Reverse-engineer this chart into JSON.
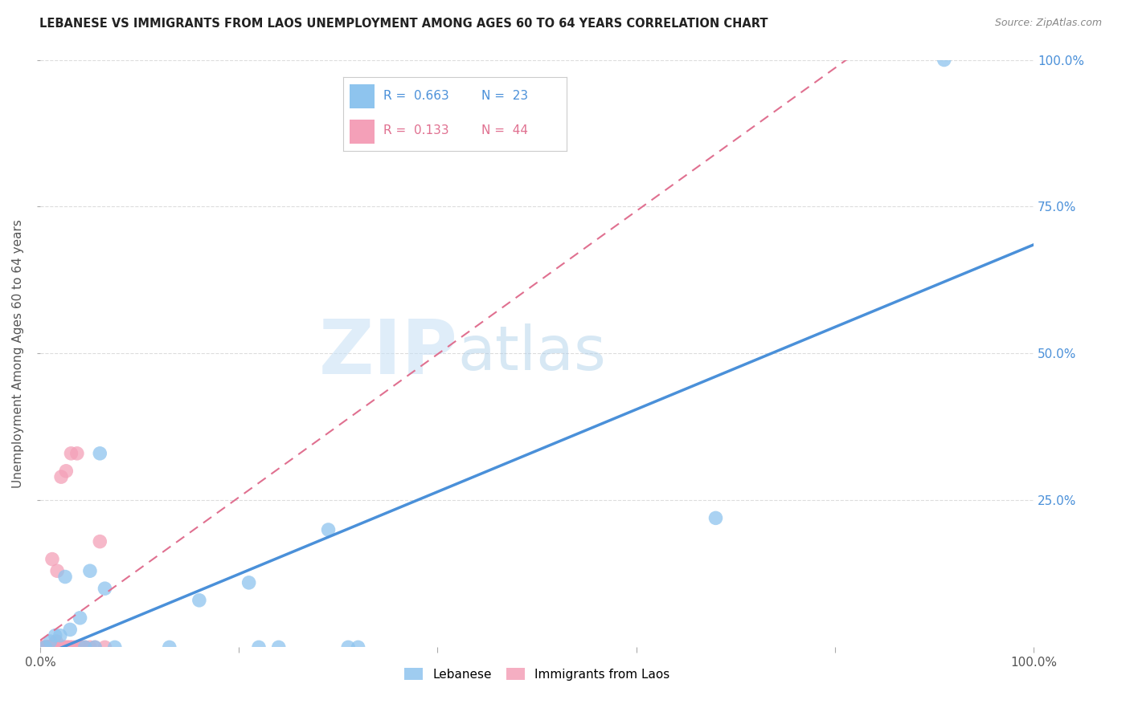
{
  "title": "LEBANESE VS IMMIGRANTS FROM LAOS UNEMPLOYMENT AMONG AGES 60 TO 64 YEARS CORRELATION CHART",
  "source": "Source: ZipAtlas.com",
  "ylabel": "Unemployment Among Ages 60 to 64 years",
  "legend_label_1": "Lebanese",
  "legend_label_2": "Immigrants from Laos",
  "R1": 0.663,
  "N1": 23,
  "R2": 0.133,
  "N2": 44,
  "color1": "#8ec4ee",
  "color2": "#f4a0b8",
  "line_color1": "#4a90d9",
  "line_color2": "#e07090",
  "background_color": "#ffffff",
  "watermark_zip": "ZIP",
  "watermark_atlas": "atlas",
  "xlim": [
    0,
    1.0
  ],
  "ylim": [
    0,
    1.0
  ],
  "ytick_values": [
    0.25,
    0.5,
    0.75,
    1.0
  ],
  "ytick_labels": [
    "25.0%",
    "50.0%",
    "75.0%",
    "100.0%"
  ],
  "lebanese_x": [
    0.005,
    0.01,
    0.015,
    0.02,
    0.025,
    0.03,
    0.04,
    0.045,
    0.05,
    0.055,
    0.06,
    0.065,
    0.075,
    0.13,
    0.16,
    0.21,
    0.22,
    0.24,
    0.29,
    0.31,
    0.32,
    0.68,
    0.91
  ],
  "lebanese_y": [
    0.0,
    0.01,
    0.02,
    0.02,
    0.12,
    0.03,
    0.05,
    0.0,
    0.13,
    0.0,
    0.33,
    0.1,
    0.0,
    0.0,
    0.08,
    0.11,
    0.0,
    0.0,
    0.2,
    0.0,
    0.0,
    0.22,
    1.0
  ],
  "laos_x": [
    0.002,
    0.003,
    0.005,
    0.006,
    0.007,
    0.007,
    0.008,
    0.008,
    0.009,
    0.009,
    0.01,
    0.01,
    0.011,
    0.012,
    0.012,
    0.013,
    0.013,
    0.014,
    0.015,
    0.016,
    0.017,
    0.018,
    0.019,
    0.02,
    0.021,
    0.022,
    0.023,
    0.024,
    0.025,
    0.026,
    0.027,
    0.028,
    0.03,
    0.031,
    0.032,
    0.035,
    0.037,
    0.04,
    0.042,
    0.045,
    0.05,
    0.055,
    0.06,
    0.065
  ],
  "laos_y": [
    0.0,
    0.0,
    0.0,
    0.0,
    0.0,
    0.0,
    0.0,
    0.0,
    0.0,
    0.0,
    0.0,
    0.0,
    0.0,
    0.0,
    0.15,
    0.0,
    0.0,
    0.0,
    0.0,
    0.01,
    0.13,
    0.0,
    0.0,
    0.0,
    0.29,
    0.0,
    0.0,
    0.0,
    0.0,
    0.3,
    0.0,
    0.0,
    0.0,
    0.33,
    0.0,
    0.0,
    0.33,
    0.0,
    0.0,
    0.0,
    0.0,
    0.0,
    0.18,
    0.0
  ],
  "marker_size": 160,
  "grid_color": "#dddddd",
  "tick_color": "#aaaaaa"
}
